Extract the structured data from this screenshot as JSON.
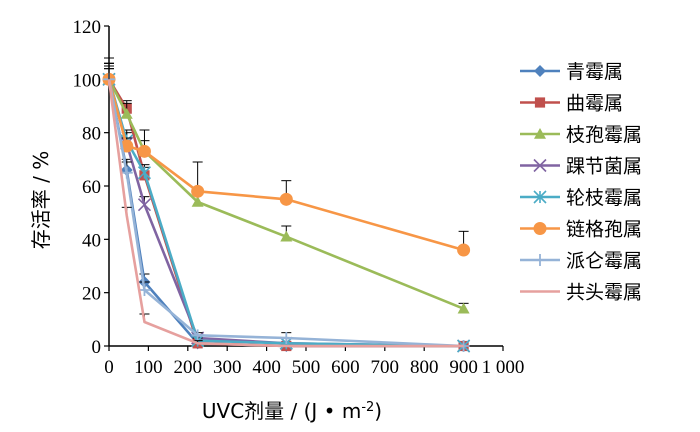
{
  "chart_data": {
    "type": "line",
    "xlabel": "UVC剂量 / (J • m",
    "xlabel_sup": "-2",
    "xlabel_close": ")",
    "ylabel": "存活率 / %",
    "xlim": [
      0,
      1000
    ],
    "ylim": [
      0,
      120
    ],
    "x_ticks": [
      "0",
      "100",
      "200",
      "300",
      "400",
      "500",
      "600",
      "700",
      "800",
      "900",
      "1 000"
    ],
    "y_ticks": [
      "0",
      "20",
      "40",
      "60",
      "80",
      "100",
      "120"
    ],
    "grid": false,
    "legend_position": "right",
    "series": [
      {
        "name": "青霉属",
        "color": "#4f81bd",
        "marker": "diamond",
        "points": [
          [
            0,
            100
          ],
          [
            45,
            66
          ],
          [
            90,
            24
          ],
          [
            225,
            1
          ],
          [
            450,
            0
          ],
          [
            900,
            0
          ]
        ],
        "err": [
          8,
          4,
          3,
          1,
          0,
          0
        ]
      },
      {
        "name": "曲霉属",
        "color": "#c0504d",
        "marker": "square",
        "points": [
          [
            0,
            100
          ],
          [
            45,
            89
          ],
          [
            90,
            64
          ],
          [
            225,
            1
          ],
          [
            450,
            0
          ],
          [
            900,
            0
          ]
        ],
        "err": [
          6,
          3,
          3,
          1,
          0,
          0
        ]
      },
      {
        "name": "枝孢霉属",
        "color": "#9bbb59",
        "marker": "triangle",
        "points": [
          [
            0,
            100
          ],
          [
            45,
            87
          ],
          [
            90,
            73
          ],
          [
            225,
            54
          ],
          [
            450,
            41
          ],
          [
            900,
            14
          ]
        ],
        "err": [
          4,
          4,
          4,
          3,
          4,
          2
        ]
      },
      {
        "name": "踝节菌属",
        "color": "#8064a2",
        "marker": "x",
        "points": [
          [
            0,
            100
          ],
          [
            45,
            76
          ],
          [
            90,
            53
          ],
          [
            225,
            3
          ],
          [
            450,
            1
          ],
          [
            900,
            0
          ]
        ],
        "err": [
          6,
          4,
          3,
          1,
          0,
          0
        ]
      },
      {
        "name": "轮枝霉属",
        "color": "#4bacc6",
        "marker": "asterisk",
        "points": [
          [
            0,
            100
          ],
          [
            45,
            77
          ],
          [
            90,
            65
          ],
          [
            225,
            2
          ],
          [
            450,
            1
          ],
          [
            900,
            0
          ]
        ],
        "err": [
          5,
          4,
          3,
          1,
          0,
          0
        ]
      },
      {
        "name": "链格孢属",
        "color": "#f79646",
        "marker": "circle",
        "points": [
          [
            0,
            100
          ],
          [
            45,
            75
          ],
          [
            90,
            73
          ],
          [
            225,
            58
          ],
          [
            450,
            55
          ],
          [
            900,
            36
          ]
        ],
        "err": [
          5,
          3,
          8,
          11,
          7,
          7
        ]
      },
      {
        "name": "派仑霉属",
        "color": "#95b3d7",
        "marker": "plus",
        "points": [
          [
            0,
            100
          ],
          [
            45,
            65
          ],
          [
            90,
            21
          ],
          [
            225,
            4
          ],
          [
            450,
            3
          ],
          [
            900,
            0
          ]
        ],
        "err": [
          6,
          4,
          3,
          1,
          2,
          0
        ]
      },
      {
        "name": "共头霉属",
        "color": "#e6a09e",
        "marker": "none",
        "points": [
          [
            0,
            100
          ],
          [
            45,
            49
          ],
          [
            90,
            9
          ],
          [
            225,
            1
          ],
          [
            450,
            0
          ],
          [
            900,
            0
          ]
        ],
        "err": [
          4,
          3,
          3,
          1,
          0,
          0
        ]
      }
    ]
  }
}
